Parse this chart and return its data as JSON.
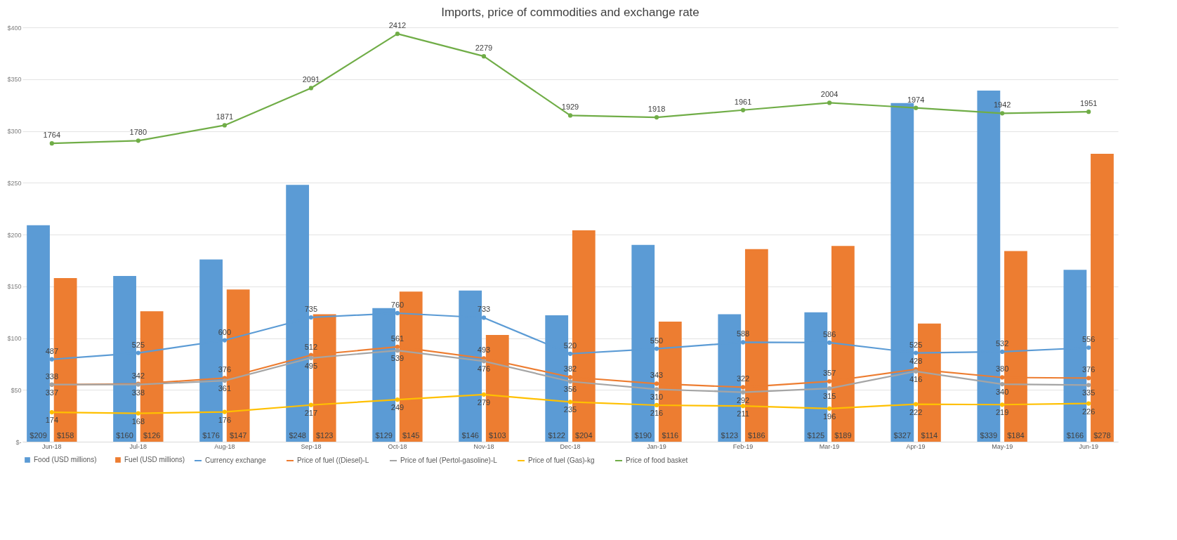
{
  "chart_data": {
    "type": "bar",
    "title": "Imports, price of commodities and exchange rate",
    "categories": [
      "Jun-18",
      "Jul-18",
      "Aug-18",
      "Sep-18",
      "Oct-18",
      "Nov-18",
      "Dec-18",
      "Jan-19",
      "Feb-19",
      "Mar-19",
      "Apr-19",
      "May-19",
      "Jun-19"
    ],
    "series": [
      {
        "name": "Food (USD millions)",
        "color": "#5b9bd5",
        "values": [
          209,
          160,
          176,
          248,
          129,
          146,
          122,
          190,
          123,
          125,
          327,
          339,
          166
        ],
        "value_labels": [
          "$209",
          "$160",
          "$176",
          "$248",
          "$129",
          "$146",
          "$122",
          "$190",
          "$123",
          "$125",
          "$327",
          "$339",
          "$166"
        ]
      },
      {
        "name": "Fuel (USD millions)",
        "color": "#ed7d31",
        "values": [
          158,
          126,
          147,
          123,
          145,
          103,
          204,
          116,
          186,
          189,
          114,
          184,
          278
        ],
        "value_labels": [
          "$158",
          "$126",
          "$147",
          "$123",
          "$145",
          "$103",
          "$204",
          "$116",
          "$186",
          "$189",
          "$114",
          "$184",
          "$278"
        ]
      },
      {
        "name": "Currency exchange",
        "type": "line",
        "axis": "y2",
        "color": "#5b9bd5",
        "values": [
          487,
          525,
          600,
          735,
          760,
          733,
          520,
          550,
          588,
          586,
          525,
          532,
          556
        ]
      },
      {
        "name": "Price of fuel ((Diesel)-L",
        "type": "line",
        "axis": "y2",
        "color": "#ed7d31",
        "values": [
          337,
          342,
          376,
          512,
          561,
          493,
          382,
          343,
          322,
          357,
          428,
          380,
          376
        ]
      },
      {
        "name": "Price of fuel (Pertol-gasoline)-L",
        "type": "line",
        "axis": "y2",
        "color": "#a5a5a5",
        "values": [
          338,
          338,
          361,
          495,
          539,
          476,
          356,
          310,
          292,
          315,
          416,
          340,
          335
        ]
      },
      {
        "name": "Price of fuel (Gas)-kg",
        "type": "line",
        "axis": "y2",
        "color": "#ffc000",
        "values": [
          174,
          168,
          176,
          217,
          249,
          279,
          235,
          216,
          211,
          196,
          222,
          219,
          226
        ]
      },
      {
        "name": "Price of food basket",
        "type": "line",
        "axis": "y2",
        "color": "#70ad47",
        "values": [
          1764,
          1780,
          1871,
          2091,
          2412,
          2279,
          1929,
          1918,
          1961,
          2004,
          1974,
          1942,
          1951
        ]
      }
    ],
    "ylim": [
      0,
      400
    ],
    "yticks": [
      {
        "value": 0,
        "label": "$-"
      },
      {
        "value": 50,
        "label": "$50"
      },
      {
        "value": 100,
        "label": "$100"
      },
      {
        "value": 150,
        "label": "$150"
      },
      {
        "value": 200,
        "label": "$200"
      },
      {
        "value": 250,
        "label": "$250"
      },
      {
        "value": 300,
        "label": "$300"
      },
      {
        "value": 350,
        "label": "$350"
      },
      {
        "value": 400,
        "label": "$400"
      }
    ],
    "y2lim": [
      0,
      2450
    ],
    "grid": "y",
    "legend": "bottom",
    "marker": "circle",
    "line_style": "solid",
    "data_labels": true
  }
}
